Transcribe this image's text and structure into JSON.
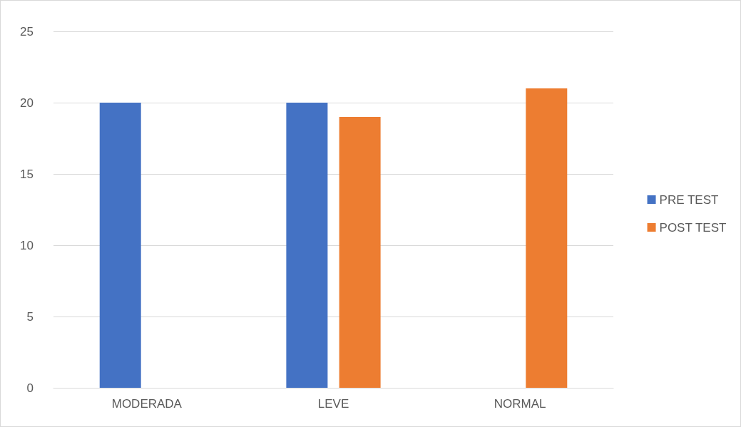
{
  "chart_data": {
    "type": "bar",
    "categories": [
      "MODERADA",
      "LEVE",
      "NORMAL"
    ],
    "series": [
      {
        "name": "PRE TEST",
        "color": "#4472c4",
        "values": [
          20,
          20,
          0
        ]
      },
      {
        "name": "POST TEST",
        "color": "#ed7d31",
        "values": [
          0,
          19,
          21
        ]
      }
    ],
    "ylim": [
      0,
      25
    ],
    "yticks": [
      0,
      5,
      10,
      15,
      20,
      25
    ],
    "grid": "y",
    "legend": "right"
  }
}
